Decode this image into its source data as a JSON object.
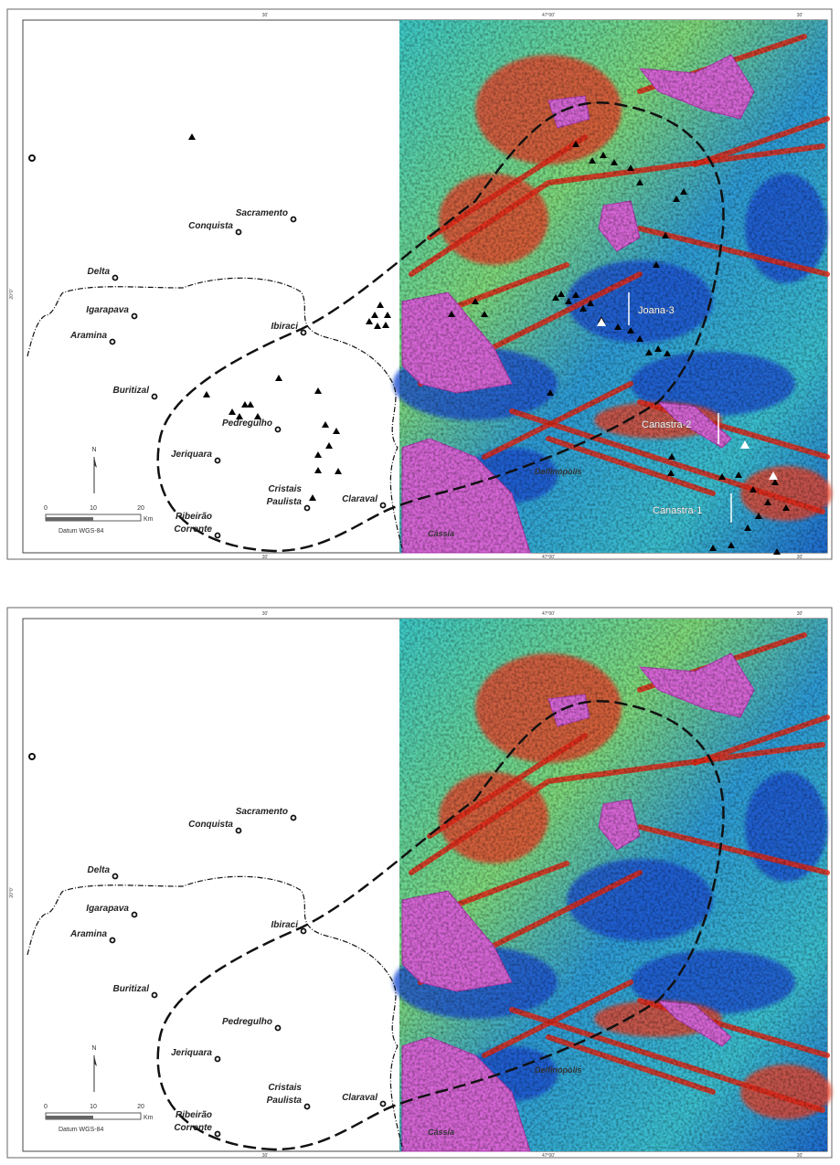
{
  "panels": [
    {
      "grid_labels": {
        "top": [
          "30'",
          "47°00'",
          "30'"
        ],
        "bottom": [
          "30'",
          "47°00'",
          "30'"
        ],
        "left": [
          "20°0'"
        ]
      },
      "towns": [
        {
          "lines": [
            "Sacramento"
          ]
        },
        {
          "lines": [
            "Conquista"
          ]
        },
        {
          "lines": [
            "Delta"
          ]
        },
        {
          "lines": [
            "Igarapava"
          ]
        },
        {
          "lines": [
            "Aramina"
          ]
        },
        {
          "lines": [
            "Ibiraci"
          ]
        },
        {
          "lines": [
            "Buritizal"
          ]
        },
        {
          "lines": [
            "Pedregulho"
          ]
        },
        {
          "lines": [
            "Jeriquara"
          ]
        },
        {
          "lines": [
            "Cristais",
            "Paulista"
          ]
        },
        {
          "lines": [
            "Claraval"
          ]
        },
        {
          "lines": [
            "Ribeirão",
            "Corrente"
          ]
        }
      ],
      "map_labels": [
        "Delfinópolis",
        "Cássia"
      ],
      "wells": [
        "Joana-3",
        "Canastra-2",
        "Canastra-1"
      ],
      "scale": {
        "ticks": [
          "0",
          "10",
          "20"
        ],
        "unit": "Km",
        "north": "N",
        "datum": "Datum WGS-84"
      }
    },
    {
      "grid_labels": {
        "top": [
          "30'",
          "47°00'",
          "30'"
        ],
        "bottom": [
          "30'",
          "47°00'",
          "30'"
        ],
        "left": [
          "20°0'"
        ]
      },
      "towns": [
        {
          "lines": [
            "Sacramento"
          ]
        },
        {
          "lines": [
            "Conquista"
          ]
        },
        {
          "lines": [
            "Delta"
          ]
        },
        {
          "lines": [
            "Igarapava"
          ]
        },
        {
          "lines": [
            "Aramina"
          ]
        },
        {
          "lines": [
            "Ibiraci"
          ]
        },
        {
          "lines": [
            "Buritizal"
          ]
        },
        {
          "lines": [
            "Pedregulho"
          ]
        },
        {
          "lines": [
            "Jeriquara"
          ]
        },
        {
          "lines": [
            "Cristais",
            "Paulista"
          ]
        },
        {
          "lines": [
            "Claraval"
          ]
        },
        {
          "lines": [
            "Ribeirão",
            "Corrente"
          ]
        }
      ],
      "map_labels": [
        "Delfinópolis",
        "Cássia"
      ],
      "scale": {
        "ticks": [
          "0",
          "10",
          "20"
        ],
        "unit": "Km",
        "north": "N",
        "datum": "Datum WGS-84"
      }
    }
  ]
}
